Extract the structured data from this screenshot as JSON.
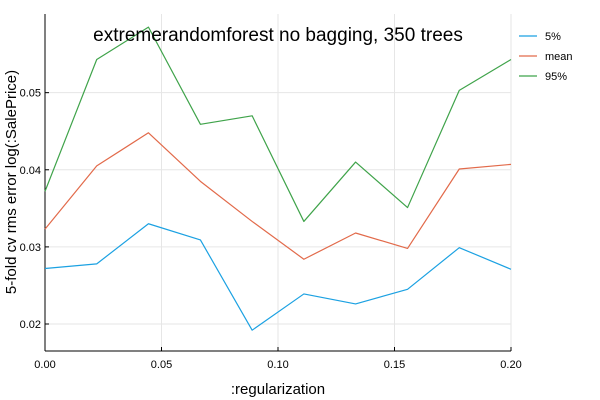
{
  "chart_data": {
    "type": "line",
    "title": "extremerandomforest no bagging, 350 trees",
    "xlabel": ":regularization",
    "ylabel": "5-fold cv rms error log(:SalePrice)",
    "x": [
      0.0,
      0.0222,
      0.0444,
      0.0667,
      0.0889,
      0.1111,
      0.1333,
      0.1556,
      0.1778,
      0.2
    ],
    "xlim": [
      0.0,
      0.2
    ],
    "ylim": [
      0.0165,
      0.0602
    ],
    "xticks": [
      0.0,
      0.05,
      0.1,
      0.15,
      0.2
    ],
    "xtick_labels": [
      "0.00",
      "0.05",
      "0.10",
      "0.15",
      "0.20"
    ],
    "yticks": [
      0.02,
      0.03,
      0.04,
      0.05
    ],
    "ytick_labels": [
      "0.02",
      "0.03",
      "0.04",
      "0.05"
    ],
    "grid": true,
    "legend_position": "top-right",
    "series": [
      {
        "name": "5%",
        "color": "#1ba1e2",
        "values": [
          0.0272,
          0.0278,
          0.033,
          0.0309,
          0.0192,
          0.0239,
          0.0226,
          0.0245,
          0.0299,
          0.0271
        ]
      },
      {
        "name": "mean",
        "color": "#e26a4a",
        "values": [
          0.0323,
          0.0405,
          0.0448,
          0.0385,
          0.0333,
          0.0284,
          0.0318,
          0.0298,
          0.0401,
          0.0407
        ]
      },
      {
        "name": "95%",
        "color": "#3fa34a",
        "values": [
          0.0372,
          0.0543,
          0.0585,
          0.0459,
          0.047,
          0.0333,
          0.041,
          0.0351,
          0.0503,
          0.0543
        ]
      }
    ]
  }
}
